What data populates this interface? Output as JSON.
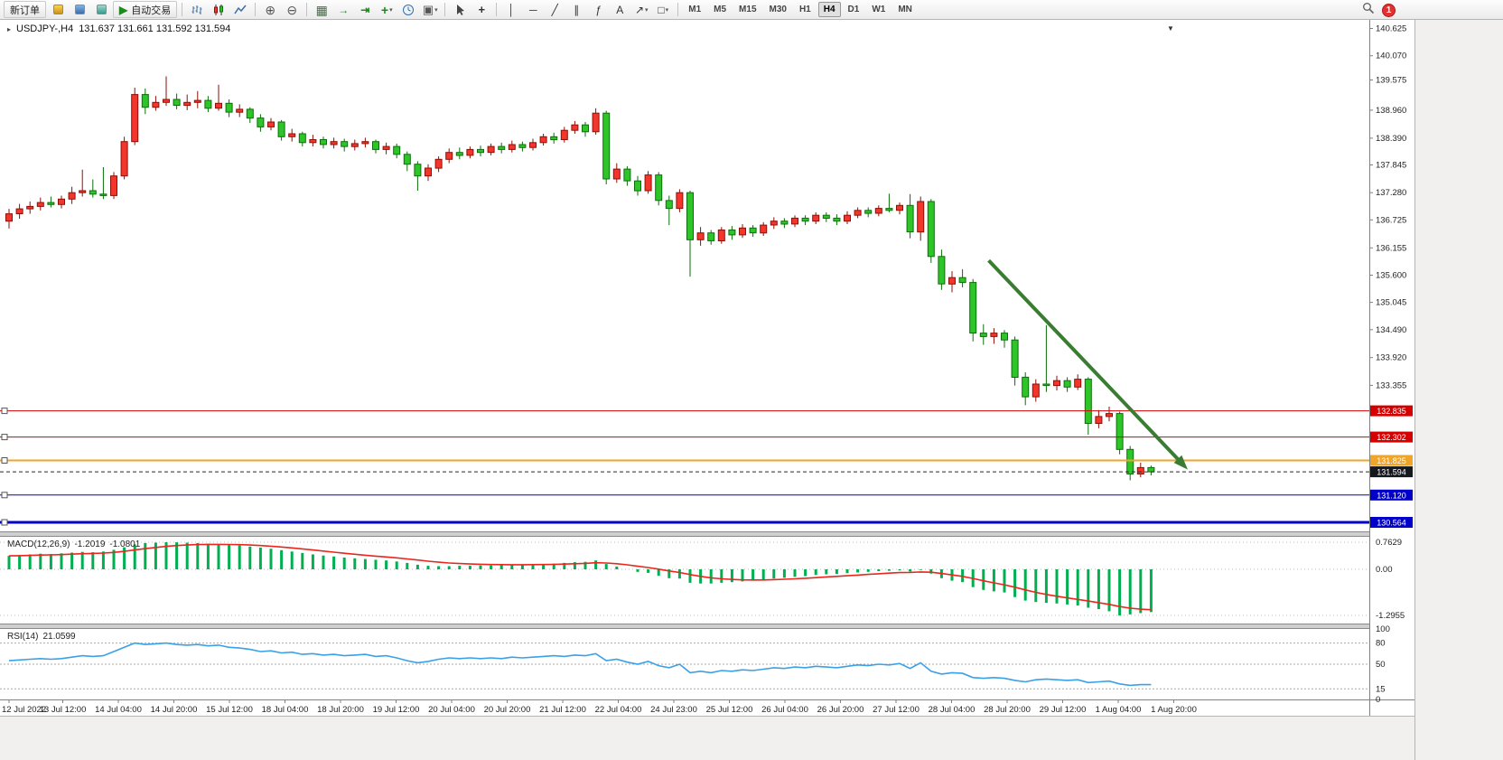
{
  "toolbar": {
    "new_order_label": "新订单",
    "auto_trading_label": "自动交易",
    "timeframes": [
      "M1",
      "M5",
      "M15",
      "M30",
      "H1",
      "H4",
      "D1",
      "W1",
      "MN"
    ],
    "active_timeframe": "H4",
    "notification_count": "1"
  },
  "icons": {
    "play": "▶",
    "zoom_in": "⊕",
    "zoom_out": "⊖",
    "grid": "▦",
    "auto_scroll": "→",
    "chart_shift": "⇥",
    "indicators_plus": "+",
    "template": "▣",
    "crosshair": "+",
    "vline": "│",
    "hline": "─",
    "trendline": "╱",
    "channel": "∥",
    "fibonacci": "ƒ",
    "text_tool": "A",
    "arrow_tool": "↗",
    "shapes_tool": "□",
    "dropdown": "▾",
    "marker_down": "▼",
    "title_marker": "▸"
  },
  "chart": {
    "title_symbol": "USDJPY-,H4",
    "title_ohlc": "131.637 131.661 131.592 131.594",
    "macd_name": "MACD(12,26,9)",
    "macd_value_main": "-1.2019",
    "macd_value_signal": "-1.0801",
    "rsi_name": "RSI(14)",
    "rsi_value": "21.0599"
  },
  "colors": {
    "candle_up": "#f3352b",
    "candle_up_border": "#8e0f08",
    "candle_down": "#2ec528",
    "candle_down_border": "#0c6e0a",
    "macd_histogram": "#00b050",
    "macd_signal": "#e8281e",
    "rsi_line": "#3aa0e8",
    "arrow": "#3a7d32",
    "hline_red": "#d40000",
    "hline_orange": "#efa42a",
    "hline_blue": "#0000c8",
    "current_price_badge": "#15181d"
  },
  "chart_data": {
    "type": "candlestick+indicators",
    "symbol": "USDJPY-",
    "period": "H4",
    "price_axis_labels": [
      "140.625",
      "140.070",
      "139.575",
      "138.960",
      "138.390",
      "137.845",
      "137.280",
      "136.725",
      "136.155",
      "135.600",
      "135.045",
      "134.490",
      "133.920",
      "133.355"
    ],
    "time_axis_labels": [
      "12 Jul 2022",
      "13 Jul 12:00",
      "14 Jul 04:00",
      "14 Jul 20:00",
      "15 Jul 12:00",
      "18 Jul 04:00",
      "18 Jul 20:00",
      "19 Jul 12:00",
      "20 Jul 04:00",
      "20 Jul 20:00",
      "21 Jul 12:00",
      "22 Jul 04:00",
      "24 Jul 23:00",
      "25 Jul 12:00",
      "26 Jul 04:00",
      "26 Jul 20:00",
      "27 Jul 12:00",
      "28 Jul 04:00",
      "28 Jul 20:00",
      "29 Jul 12:00",
      "1 Aug 04:00",
      "1 Aug 20:00"
    ],
    "hlines": [
      {
        "price": 132.835,
        "label": "132.835",
        "color": "#d40000",
        "width": 1
      },
      {
        "price": 132.302,
        "label": "132.302",
        "color": "#d40000",
        "width": 1
      },
      {
        "price": 131.825,
        "label": "131.825",
        "color": "#efa42a",
        "width": 2
      },
      {
        "price": 131.12,
        "label": "131.120",
        "color": "#0000c8",
        "width": 1
      },
      {
        "price": 130.564,
        "label": "130.564",
        "color": "#0000c8",
        "width": 3
      }
    ],
    "current_price": {
      "value": 131.594,
      "label": "131.594"
    },
    "trend_arrow": {
      "from_index": 93.5,
      "from_price": 135.9,
      "to_index": 112.5,
      "to_price": 131.64
    },
    "candles": [
      [
        136.7,
        136.95,
        136.55,
        136.85
      ],
      [
        136.85,
        137.05,
        136.75,
        136.95
      ],
      [
        136.95,
        137.1,
        136.85,
        137.0
      ],
      [
        137.0,
        137.18,
        136.92,
        137.08
      ],
      [
        137.08,
        137.2,
        136.98,
        137.04
      ],
      [
        137.04,
        137.22,
        136.96,
        137.15
      ],
      [
        137.15,
        137.4,
        137.05,
        137.28
      ],
      [
        137.28,
        137.75,
        137.2,
        137.32
      ],
      [
        137.32,
        137.55,
        137.18,
        137.25
      ],
      [
        137.25,
        137.8,
        137.15,
        137.22
      ],
      [
        137.22,
        137.7,
        137.15,
        137.62
      ],
      [
        137.62,
        138.42,
        137.55,
        138.32
      ],
      [
        138.32,
        139.42,
        138.25,
        139.28
      ],
      [
        139.28,
        139.4,
        138.88,
        139.02
      ],
      [
        139.02,
        139.25,
        138.95,
        139.12
      ],
      [
        139.12,
        139.65,
        139.05,
        139.18
      ],
      [
        139.18,
        139.3,
        138.98,
        139.06
      ],
      [
        139.06,
        139.28,
        138.96,
        139.12
      ],
      [
        139.12,
        139.35,
        139.0,
        139.16
      ],
      [
        139.16,
        139.25,
        138.92,
        139.0
      ],
      [
        139.0,
        139.48,
        138.95,
        139.1
      ],
      [
        139.1,
        139.18,
        138.82,
        138.92
      ],
      [
        138.92,
        139.08,
        138.82,
        138.98
      ],
      [
        138.98,
        139.02,
        138.7,
        138.8
      ],
      [
        138.8,
        138.88,
        138.52,
        138.62
      ],
      [
        138.62,
        138.8,
        138.55,
        138.72
      ],
      [
        138.72,
        138.76,
        138.34,
        138.42
      ],
      [
        138.42,
        138.58,
        138.32,
        138.48
      ],
      [
        138.48,
        138.52,
        138.22,
        138.3
      ],
      [
        138.3,
        138.46,
        138.22,
        138.36
      ],
      [
        138.36,
        138.42,
        138.18,
        138.26
      ],
      [
        138.26,
        138.4,
        138.18,
        138.32
      ],
      [
        138.32,
        138.38,
        138.12,
        138.22
      ],
      [
        138.22,
        138.36,
        138.14,
        138.28
      ],
      [
        138.28,
        138.4,
        138.2,
        138.32
      ],
      [
        138.32,
        138.36,
        138.08,
        138.16
      ],
      [
        138.16,
        138.3,
        138.06,
        138.22
      ],
      [
        138.22,
        138.28,
        137.98,
        138.06
      ],
      [
        138.06,
        138.12,
        137.72,
        137.86
      ],
      [
        137.86,
        137.92,
        137.32,
        137.62
      ],
      [
        137.62,
        137.86,
        137.52,
        137.78
      ],
      [
        137.78,
        138.02,
        137.7,
        137.96
      ],
      [
        137.96,
        138.18,
        137.88,
        138.1
      ],
      [
        138.1,
        138.2,
        137.96,
        138.04
      ],
      [
        138.04,
        138.22,
        137.98,
        138.16
      ],
      [
        138.16,
        138.24,
        138.02,
        138.1
      ],
      [
        138.1,
        138.28,
        138.04,
        138.22
      ],
      [
        138.22,
        138.3,
        138.08,
        138.16
      ],
      [
        138.16,
        138.34,
        138.1,
        138.26
      ],
      [
        138.26,
        138.32,
        138.12,
        138.2
      ],
      [
        138.2,
        138.38,
        138.14,
        138.3
      ],
      [
        138.3,
        138.48,
        138.24,
        138.42
      ],
      [
        138.42,
        138.5,
        138.28,
        138.36
      ],
      [
        138.36,
        138.62,
        138.3,
        138.55
      ],
      [
        138.55,
        138.74,
        138.48,
        138.66
      ],
      [
        138.66,
        138.72,
        138.42,
        138.52
      ],
      [
        138.52,
        139.0,
        138.46,
        138.9
      ],
      [
        138.9,
        138.95,
        137.45,
        137.56
      ],
      [
        137.56,
        137.88,
        137.48,
        137.76
      ],
      [
        137.76,
        137.82,
        137.42,
        137.52
      ],
      [
        137.52,
        137.62,
        137.22,
        137.32
      ],
      [
        137.32,
        137.72,
        137.26,
        137.64
      ],
      [
        137.64,
        137.7,
        137.02,
        137.12
      ],
      [
        137.12,
        137.22,
        136.62,
        136.96
      ],
      [
        136.96,
        137.35,
        136.88,
        137.28
      ],
      [
        137.28,
        137.32,
        135.57,
        136.32
      ],
      [
        136.32,
        136.58,
        136.2,
        136.46
      ],
      [
        136.46,
        136.52,
        136.22,
        136.3
      ],
      [
        136.3,
        136.58,
        136.24,
        136.52
      ],
      [
        136.52,
        136.6,
        136.32,
        136.42
      ],
      [
        136.42,
        136.64,
        136.36,
        136.56
      ],
      [
        136.56,
        136.62,
        136.38,
        136.46
      ],
      [
        136.46,
        136.68,
        136.4,
        136.62
      ],
      [
        136.62,
        136.78,
        136.54,
        136.7
      ],
      [
        136.7,
        136.76,
        136.56,
        136.64
      ],
      [
        136.64,
        136.82,
        136.58,
        136.76
      ],
      [
        136.76,
        136.82,
        136.62,
        136.7
      ],
      [
        136.7,
        136.88,
        136.64,
        136.82
      ],
      [
        136.82,
        136.88,
        136.68,
        136.76
      ],
      [
        136.76,
        136.84,
        136.62,
        136.7
      ],
      [
        136.7,
        136.9,
        136.64,
        136.82
      ],
      [
        136.82,
        136.98,
        136.76,
        136.92
      ],
      [
        136.92,
        136.98,
        136.78,
        136.86
      ],
      [
        136.86,
        137.02,
        136.8,
        136.96
      ],
      [
        136.96,
        137.26,
        136.88,
        136.92
      ],
      [
        136.92,
        137.08,
        136.84,
        137.02
      ],
      [
        137.02,
        137.25,
        136.35,
        136.48
      ],
      [
        136.48,
        137.2,
        136.3,
        137.1
      ],
      [
        137.1,
        137.15,
        135.85,
        135.98
      ],
      [
        135.98,
        136.12,
        135.3,
        135.42
      ],
      [
        135.42,
        135.68,
        135.25,
        135.55
      ],
      [
        135.55,
        135.72,
        135.35,
        135.45
      ],
      [
        135.45,
        135.52,
        134.25,
        134.42
      ],
      [
        134.42,
        134.6,
        134.18,
        134.35
      ],
      [
        134.35,
        134.52,
        134.2,
        134.42
      ],
      [
        134.42,
        134.48,
        134.12,
        134.28
      ],
      [
        134.28,
        134.35,
        133.35,
        133.52
      ],
      [
        133.52,
        133.62,
        132.95,
        133.12
      ],
      [
        133.12,
        133.48,
        133.02,
        133.38
      ],
      [
        133.38,
        134.58,
        133.22,
        133.35
      ],
      [
        133.35,
        133.55,
        133.25,
        133.45
      ],
      [
        133.45,
        133.52,
        133.22,
        133.32
      ],
      [
        133.32,
        133.58,
        133.26,
        133.48
      ],
      [
        133.48,
        133.52,
        132.35,
        132.58
      ],
      [
        132.58,
        132.85,
        132.48,
        132.72
      ],
      [
        132.72,
        132.92,
        132.62,
        132.78
      ],
      [
        132.78,
        132.82,
        131.95,
        132.05
      ],
      [
        132.05,
        132.12,
        131.42,
        131.55
      ],
      [
        131.55,
        131.78,
        131.48,
        131.68
      ],
      [
        131.68,
        131.72,
        131.52,
        131.594
      ]
    ],
    "macd": {
      "histogram": [
        0.38,
        0.4,
        0.42,
        0.44,
        0.43,
        0.45,
        0.47,
        0.49,
        0.48,
        0.5,
        0.55,
        0.62,
        0.7,
        0.74,
        0.75,
        0.7629,
        0.76,
        0.75,
        0.74,
        0.72,
        0.71,
        0.69,
        0.67,
        0.64,
        0.61,
        0.58,
        0.54,
        0.5,
        0.46,
        0.42,
        0.39,
        0.36,
        0.33,
        0.31,
        0.29,
        0.27,
        0.25,
        0.22,
        0.18,
        0.13,
        0.1,
        0.09,
        0.09,
        0.1,
        0.1,
        0.11,
        0.11,
        0.12,
        0.12,
        0.13,
        0.14,
        0.15,
        0.16,
        0.18,
        0.2,
        0.21,
        0.25,
        0.15,
        0.08,
        0.0,
        -0.07,
        -0.1,
        -0.18,
        -0.25,
        -0.26,
        -0.38,
        -0.4,
        -0.4,
        -0.38,
        -0.36,
        -0.34,
        -0.32,
        -0.29,
        -0.26,
        -0.24,
        -0.21,
        -0.19,
        -0.16,
        -0.14,
        -0.13,
        -0.11,
        -0.09,
        -0.07,
        -0.05,
        -0.04,
        -0.03,
        -0.06,
        -0.02,
        -0.12,
        -0.25,
        -0.32,
        -0.36,
        -0.5,
        -0.58,
        -0.62,
        -0.65,
        -0.78,
        -0.88,
        -0.92,
        -0.94,
        -0.96,
        -0.99,
        -1.02,
        -1.08,
        -1.12,
        -1.18,
        -1.2955,
        -1.27,
        -1.23,
        -1.2019
      ],
      "scale_labels": [
        {
          "v": 0.7629,
          "t": "0.7629"
        },
        {
          "v": 0,
          "t": "0.00"
        },
        {
          "v": -1.2955,
          "t": "-1.2955"
        }
      ]
    },
    "rsi": {
      "values": [
        55,
        56,
        57,
        58,
        57,
        58,
        60,
        62,
        61,
        62,
        68,
        74,
        80,
        78,
        79,
        80,
        78,
        77,
        78,
        76,
        77,
        74,
        73,
        71,
        68,
        69,
        66,
        67,
        64,
        65,
        63,
        64,
        62,
        63,
        64,
        61,
        62,
        59,
        55,
        52,
        54,
        57,
        59,
        58,
        59,
        58,
        59,
        58,
        60,
        59,
        60,
        61,
        62,
        61,
        63,
        62,
        65,
        55,
        57,
        53,
        50,
        54,
        48,
        45,
        50,
        38,
        40,
        38,
        41,
        40,
        42,
        41,
        43,
        45,
        44,
        46,
        45,
        47,
        46,
        45,
        47,
        49,
        48,
        50,
        49,
        51,
        44,
        52,
        40,
        36,
        38,
        37,
        31,
        30,
        31,
        30,
        27,
        25,
        28,
        29,
        28,
        27,
        28,
        24,
        25,
        26,
        22,
        20,
        21,
        21.06
      ],
      "levels": [
        80,
        50,
        15
      ],
      "scale_labels": [
        {
          "v": 100,
          "t": "100"
        },
        {
          "v": 80,
          "t": "80"
        },
        {
          "v": 50,
          "t": "50"
        },
        {
          "v": 15,
          "t": "15"
        },
        {
          "v": 0,
          "t": "0"
        }
      ]
    }
  }
}
